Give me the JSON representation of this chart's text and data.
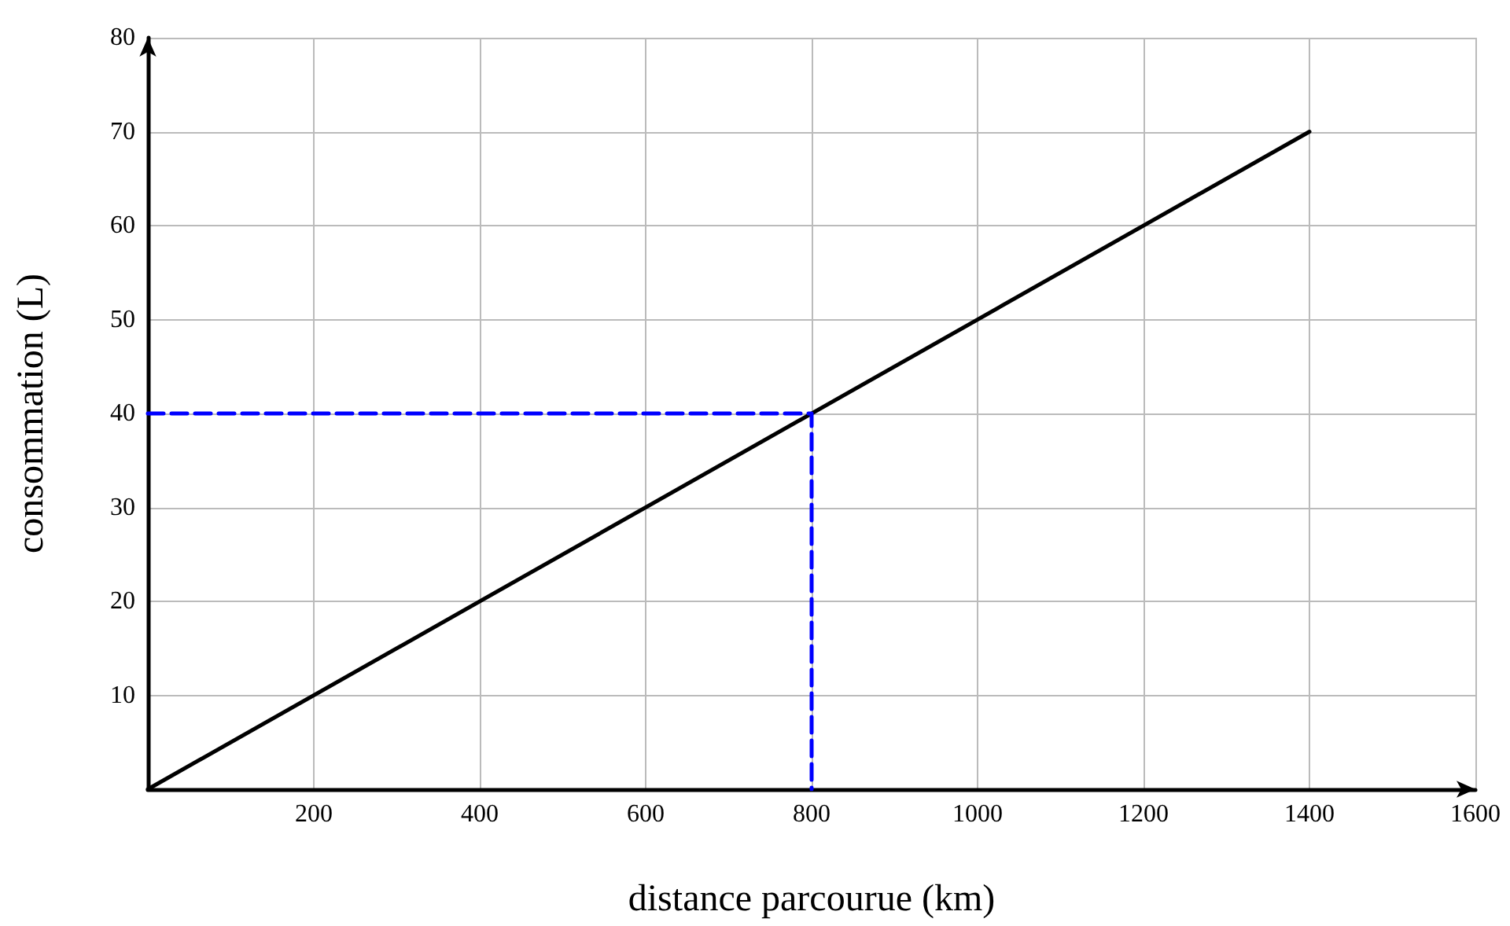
{
  "chart_data": {
    "type": "line",
    "xlabel": "distance parcourue (km)",
    "ylabel": "consommation (L)",
    "xlim": [
      0,
      1600
    ],
    "xticks": [
      200,
      400,
      600,
      800,
      1000,
      1200,
      1400,
      1600
    ],
    "ylim": [
      0,
      80
    ],
    "yticks": [
      10,
      20,
      30,
      40,
      50,
      60,
      70,
      80
    ],
    "series": [
      {
        "x": [
          0,
          1400
        ],
        "values": [
          0,
          70
        ],
        "color": "#000000",
        "line_style": "solid"
      },
      {
        "x": [
          0,
          800,
          800
        ],
        "values": [
          40,
          40,
          0
        ],
        "color": "#0000ff",
        "line_style": "dashed"
      }
    ],
    "grid": true,
    "marker": "none"
  }
}
